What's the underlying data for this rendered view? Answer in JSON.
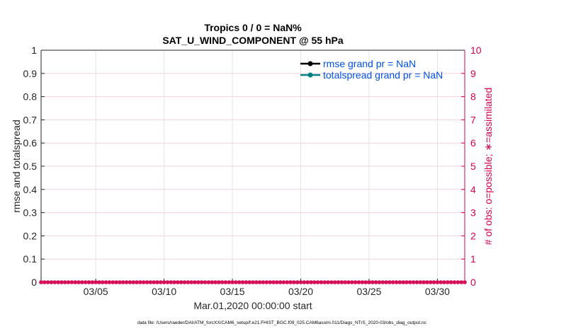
{
  "chart_data": {
    "type": "line",
    "title": [
      "Tropics 0 / 0 = NaN%",
      "SAT_U_WIND_COMPONENT @ 55 hPa"
    ],
    "xlabel": "Mar.01,2020 00:00:00 start",
    "ylabel": "rmse and totalspread",
    "ylabel_right": "# of obs: o=possible; ∗=assimilated",
    "xlim": [
      "2020-03-01",
      "2020-04-01"
    ],
    "x_ticks": [
      {
        "date": "2020-03-05",
        "label": "03/05"
      },
      {
        "date": "2020-03-10",
        "label": "03/10"
      },
      {
        "date": "2020-03-15",
        "label": "03/15"
      },
      {
        "date": "2020-03-20",
        "label": "03/20"
      },
      {
        "date": "2020-03-25",
        "label": "03/25"
      },
      {
        "date": "2020-03-30",
        "label": "03/30"
      }
    ],
    "ylim": [
      0,
      1
    ],
    "y_ticks": [
      "0",
      "0.1",
      "0.2",
      "0.3",
      "0.4",
      "0.5",
      "0.6",
      "0.7",
      "0.8",
      "0.9",
      "1"
    ],
    "ylim_right": [
      0,
      10
    ],
    "y_ticks_right": [
      "0",
      "1",
      "2",
      "3",
      "4",
      "5",
      "6",
      "7",
      "8",
      "9",
      "10"
    ],
    "grid": true,
    "legend_placement": "top-right",
    "series": [
      {
        "name": "rmse grand pr = NaN",
        "color": "#000000",
        "values": []
      },
      {
        "name": "totalspread grand pr = NaN",
        "color": "#008080",
        "values": []
      }
    ],
    "obs": {
      "time_start": "2020-03-01T00:00",
      "time_step_hours": 6,
      "possible": [
        0,
        0,
        0,
        0,
        0,
        0,
        0,
        0,
        0,
        0,
        0,
        0,
        0,
        0,
        0,
        0,
        0,
        0,
        0,
        0,
        0,
        0,
        0,
        0,
        0,
        0,
        0,
        0,
        0,
        0,
        0,
        0,
        0,
        0,
        0,
        0,
        0,
        0,
        0,
        0,
        0,
        0,
        0,
        0,
        0,
        0,
        0,
        0,
        0,
        0,
        0,
        0,
        0,
        0,
        0,
        0,
        0,
        0,
        0,
        0,
        0,
        0,
        0,
        0,
        0,
        0,
        0,
        0,
        0,
        0,
        0,
        0,
        0,
        0,
        0,
        0,
        0,
        0,
        0,
        0,
        0,
        0,
        0,
        0,
        0,
        0,
        0,
        0,
        0,
        0,
        0,
        0,
        0,
        0,
        0,
        0,
        0,
        0,
        0,
        0,
        0,
        0,
        0,
        0,
        0,
        0,
        0,
        0,
        0,
        0,
        0,
        0,
        0,
        0,
        0,
        0,
        0,
        0,
        0,
        0,
        0,
        0,
        0,
        0,
        0
      ],
      "assimilated": [
        0,
        0,
        0,
        0,
        0,
        0,
        0,
        0,
        0,
        0,
        0,
        0,
        0,
        0,
        0,
        0,
        0,
        0,
        0,
        0,
        0,
        0,
        0,
        0,
        0,
        0,
        0,
        0,
        0,
        0,
        0,
        0,
        0,
        0,
        0,
        0,
        0,
        0,
        0,
        0,
        0,
        0,
        0,
        0,
        0,
        0,
        0,
        0,
        0,
        0,
        0,
        0,
        0,
        0,
        0,
        0,
        0,
        0,
        0,
        0,
        0,
        0,
        0,
        0,
        0,
        0,
        0,
        0,
        0,
        0,
        0,
        0,
        0,
        0,
        0,
        0,
        0,
        0,
        0,
        0,
        0,
        0,
        0,
        0,
        0,
        0,
        0,
        0,
        0,
        0,
        0,
        0,
        0,
        0,
        0,
        0,
        0,
        0,
        0,
        0,
        0,
        0,
        0,
        0,
        0,
        0,
        0,
        0,
        0,
        0,
        0,
        0,
        0,
        0,
        0,
        0,
        0,
        0,
        0,
        0,
        0,
        0,
        0,
        0,
        0
      ],
      "color": "#d6004f"
    },
    "legend_text_color": "#0050e6"
  },
  "footer": "data file: /Users/raeder/DAI/ATM_forcXX/CAM6_setup/f.e21.FHIST_BGC.f09_025.CAM6assim.011/Diags_NTrS_2020-03/obs_diag_output.nc"
}
